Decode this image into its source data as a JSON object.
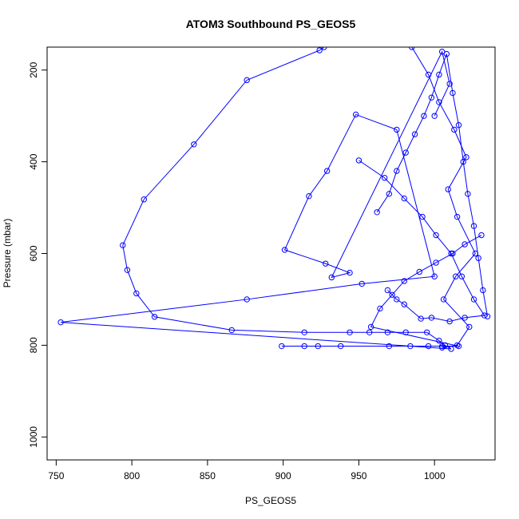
{
  "chart_data": {
    "type": "line",
    "title": "ATOM3 Southbound PS_GEOS5",
    "xlabel": "PS_GEOS5",
    "ylabel": "Pressure (mbar)",
    "xlim": [
      744,
      1040
    ],
    "ylim": [
      150,
      1050
    ],
    "y_reversed": true,
    "x_ticks": [
      750,
      800,
      850,
      900,
      950,
      1000
    ],
    "y_ticks": [
      200,
      400,
      600,
      800,
      1000
    ],
    "grid": false,
    "legend": "none",
    "colors": {
      "series": "#0000ff",
      "axes": "#000000"
    },
    "series": [
      {
        "values": [
          [
            927,
            150
          ],
          [
            924,
            157
          ],
          [
            876,
            222
          ],
          [
            841,
            362
          ],
          [
            808,
            482
          ],
          [
            794,
            582
          ],
          [
            797,
            636
          ],
          [
            803,
            687
          ],
          [
            815,
            738
          ],
          [
            866,
            767
          ],
          [
            914,
            772
          ],
          [
            944,
            772
          ],
          [
            957,
            772
          ],
          [
            969,
            772
          ],
          [
            981,
            772
          ],
          [
            995,
            772
          ],
          [
            1003,
            790
          ],
          [
            1007,
            800
          ],
          [
            1011,
            808
          ],
          [
            753,
            750
          ],
          [
            876,
            700
          ],
          [
            952,
            666
          ],
          [
            1000,
            650
          ],
          [
            975,
            330
          ],
          [
            948,
            297
          ],
          [
            929,
            420
          ],
          [
            917,
            475
          ],
          [
            901,
            592
          ],
          [
            928,
            622
          ],
          [
            944,
            642
          ],
          [
            932,
            652
          ],
          [
            1005,
            160
          ],
          [
            1010,
            230
          ],
          [
            1000,
            300
          ]
        ]
      },
      {
        "values": [
          [
            985,
            150
          ],
          [
            996,
            210
          ],
          [
            1003,
            270
          ],
          [
            1013,
            330
          ],
          [
            1021,
            390
          ],
          [
            1009,
            460
          ],
          [
            1015,
            520
          ],
          [
            1027,
            600
          ],
          [
            1014,
            650
          ],
          [
            1006,
            700
          ],
          [
            1023,
            760
          ],
          [
            1015,
            800
          ],
          [
            1005,
            805
          ]
        ]
      },
      {
        "values": [
          [
            899,
            802
          ],
          [
            914,
            802
          ],
          [
            923,
            802
          ],
          [
            938,
            802
          ],
          [
            970,
            802
          ],
          [
            984,
            802
          ],
          [
            996,
            802
          ],
          [
            1005,
            802
          ],
          [
            1016,
            802
          ],
          [
            958,
            760
          ],
          [
            964,
            720
          ],
          [
            972,
            690
          ],
          [
            980,
            660
          ],
          [
            990,
            640
          ],
          [
            1001,
            620
          ],
          [
            1012,
            600
          ],
          [
            1020,
            580
          ],
          [
            1031,
            560
          ]
        ]
      },
      {
        "values": [
          [
            950,
            397
          ],
          [
            967,
            435
          ],
          [
            980,
            480
          ],
          [
            992,
            520
          ],
          [
            1001,
            560
          ],
          [
            1011,
            600
          ],
          [
            1018,
            650
          ],
          [
            1026,
            700
          ],
          [
            1033,
            735
          ],
          [
            1020,
            740
          ],
          [
            1010,
            748
          ],
          [
            998,
            740
          ],
          [
            991,
            742
          ],
          [
            980,
            711
          ],
          [
            975,
            700
          ],
          [
            969,
            680
          ]
        ]
      },
      {
        "values": [
          [
            962,
            510
          ],
          [
            970,
            470
          ],
          [
            975,
            420
          ],
          [
            981,
            380
          ],
          [
            987,
            340
          ],
          [
            993,
            300
          ],
          [
            998,
            260
          ],
          [
            1003,
            210
          ],
          [
            1008,
            165
          ],
          [
            1012,
            250
          ],
          [
            1016,
            320
          ],
          [
            1019,
            400
          ],
          [
            1022,
            470
          ],
          [
            1026,
            540
          ],
          [
            1029,
            610
          ],
          [
            1032,
            680
          ],
          [
            1035,
            737
          ]
        ]
      }
    ]
  }
}
